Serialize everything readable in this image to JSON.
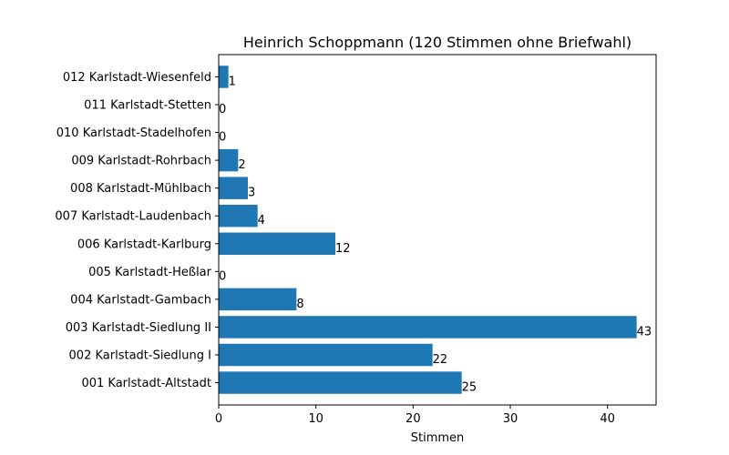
{
  "chart_data": {
    "type": "bar",
    "orientation": "horizontal",
    "title": "Heinrich Schoppmann (120 Stimmen ohne Briefwahl)",
    "xlabel": "Stimmen",
    "ylabel": "",
    "xlim": [
      0,
      45
    ],
    "xticks": [
      0,
      10,
      20,
      30,
      40
    ],
    "grid": false,
    "bar_color": "#1f77b4",
    "categories": [
      "001 Karlstadt-Altstadt",
      "002 Karlstadt-Siedlung I",
      "003 Karlstadt-Siedlung II",
      "004 Karlstadt-Gambach",
      "005 Karlstadt-Heßlar",
      "006 Karlstadt-Karlburg",
      "007 Karlstadt-Laudenbach",
      "008 Karlstadt-Mühlbach",
      "009 Karlstadt-Rohrbach",
      "010 Karlstadt-Stadelhofen",
      "011 Karlstadt-Stetten",
      "012 Karlstadt-Wiesenfeld"
    ],
    "values": [
      25,
      22,
      43,
      8,
      0,
      12,
      4,
      3,
      2,
      0,
      0,
      1
    ]
  }
}
